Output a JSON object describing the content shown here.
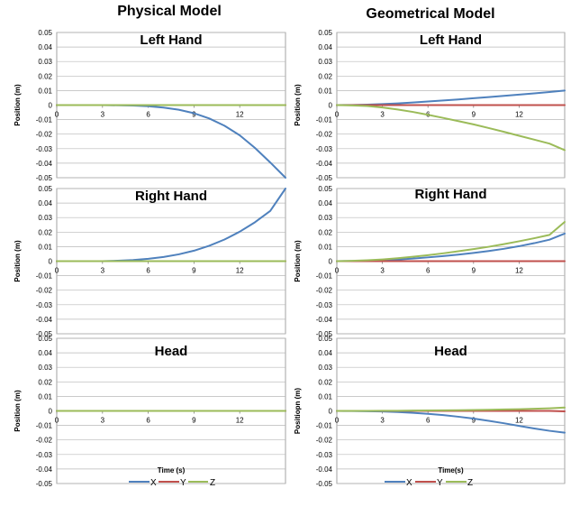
{
  "column_titles": [
    "Physical Model",
    "Geometrical Model"
  ],
  "legend": [
    {
      "name": "X",
      "color": "#4F81BD"
    },
    {
      "name": "Y",
      "color": "#C0504D"
    },
    {
      "name": "Z",
      "color": "#9BBB59"
    }
  ],
  "chart_data": [
    {
      "type": "line",
      "title": "Left Hand",
      "ylabel": "Position (m)",
      "xlabel": "",
      "ylim": [
        -0.05,
        0.05
      ],
      "xlim": [
        0,
        15
      ],
      "xticks": [
        0,
        3,
        6,
        9,
        12
      ],
      "yticks": [
        0.05,
        0.04,
        0.03,
        0.02,
        0.01,
        0,
        -0.01,
        -0.02,
        -0.03,
        -0.04,
        -0.05
      ],
      "ytick_labels": [
        "0.05",
        "0.04",
        "0.03",
        "0.02",
        "0.01",
        "0",
        "-0.01",
        "-0.02",
        "-0.03",
        "-0.04",
        "-0.05"
      ],
      "grid": "horizontal",
      "x": [
        0,
        3,
        5,
        6,
        7,
        8,
        9,
        10,
        11,
        12,
        13,
        14,
        15
      ],
      "series": [
        {
          "name": "X",
          "color": "#4F81BD",
          "values": [
            0,
            0,
            -0.0003,
            -0.0008,
            -0.0017,
            -0.0032,
            -0.0056,
            -0.0092,
            -0.0142,
            -0.0208,
            -0.0295,
            -0.0395,
            -0.05
          ]
        },
        {
          "name": "Y",
          "color": "#C0504D",
          "values": [
            0,
            0,
            0,
            0,
            0,
            0,
            0,
            0,
            0,
            0,
            0,
            0,
            0
          ]
        },
        {
          "name": "Z",
          "color": "#9BBB59",
          "values": [
            0,
            0,
            0,
            0,
            0,
            0,
            0,
            0,
            0,
            0,
            0,
            0,
            0
          ]
        }
      ]
    },
    {
      "type": "line",
      "title": "Left Hand",
      "ylabel": "Position (m)",
      "xlabel": "",
      "ylim": [
        -0.05,
        0.05
      ],
      "xlim": [
        0,
        15
      ],
      "xticks": [
        0,
        3,
        6,
        9,
        12
      ],
      "yticks": [
        0.05,
        0.04,
        0.03,
        0.02,
        0.01,
        0,
        -0.01,
        -0.02,
        -0.03,
        -0.04,
        -0.05
      ],
      "ytick_labels": [
        "0.05",
        "0.04",
        "0.03",
        "0.02",
        "0.01",
        "0",
        "-0.01",
        "-0.02",
        "-0.03",
        "-0.04",
        "-0.05"
      ],
      "grid": "horizontal",
      "x": [
        0,
        1,
        2,
        3,
        4,
        5,
        6,
        7,
        8,
        9,
        10,
        11,
        12,
        13,
        14,
        15
      ],
      "series": [
        {
          "name": "X",
          "color": "#4F81BD",
          "values": [
            0,
            0.0001,
            0.0003,
            0.0007,
            0.0012,
            0.0018,
            0.0025,
            0.0032,
            0.0039,
            0.0047,
            0.0055,
            0.0064,
            0.0072,
            0.0081,
            0.009,
            0.01
          ]
        },
        {
          "name": "Y",
          "color": "#C0504D",
          "values": [
            0,
            0,
            0,
            0,
            0,
            0,
            0,
            0,
            0,
            0,
            0,
            0,
            0,
            0,
            0,
            0
          ]
        },
        {
          "name": "Z",
          "color": "#9BBB59",
          "values": [
            0,
            -0.0002,
            -0.0006,
            -0.0016,
            -0.003,
            -0.0047,
            -0.0067,
            -0.0088,
            -0.011,
            -0.0133,
            -0.0158,
            -0.0184,
            -0.0211,
            -0.0238,
            -0.0265,
            -0.031
          ]
        }
      ]
    },
    {
      "type": "line",
      "title": "Right Hand",
      "ylabel": "Position (m)",
      "xlabel": "",
      "ylim": [
        -0.05,
        0.05
      ],
      "xlim": [
        0,
        15
      ],
      "xticks": [
        0,
        3,
        6,
        9,
        12
      ],
      "yticks": [
        0.05,
        0.04,
        0.03,
        0.02,
        0.01,
        0,
        -0.01,
        -0.02,
        -0.03,
        -0.04,
        -0.05
      ],
      "ytick_labels": [
        "0.05",
        "0.04",
        "0.03",
        "0.02",
        "0.01",
        "0",
        "-0.01",
        "-0.02",
        "-0.03",
        "-0.04",
        "-0.05"
      ],
      "grid": "horizontal",
      "x": [
        0,
        3,
        4,
        5,
        6,
        7,
        8,
        9,
        10,
        11,
        12,
        13,
        14,
        15
      ],
      "series": [
        {
          "name": "X",
          "color": "#4F81BD",
          "values": [
            0,
            0,
            0.0003,
            0.0008,
            0.0016,
            0.0029,
            0.0047,
            0.0072,
            0.0106,
            0.0149,
            0.0203,
            0.0268,
            0.0346,
            0.05
          ]
        },
        {
          "name": "Y",
          "color": "#C0504D",
          "values": [
            0,
            0,
            0,
            0,
            0,
            0,
            0,
            0,
            0,
            0,
            0,
            0,
            0,
            0
          ]
        },
        {
          "name": "Z",
          "color": "#9BBB59",
          "values": [
            0,
            0,
            0,
            0,
            0,
            0,
            0,
            0,
            0,
            0,
            0,
            0,
            0,
            0
          ]
        }
      ]
    },
    {
      "type": "line",
      "title": "Right Hand",
      "ylabel": "Position (m)",
      "xlabel": "",
      "ylim": [
        -0.05,
        0.05
      ],
      "xlim": [
        0,
        15
      ],
      "xticks": [
        0,
        3,
        6,
        9,
        12
      ],
      "yticks": [
        0.05,
        0.04,
        0.03,
        0.02,
        0.01,
        0,
        -0.01,
        -0.02,
        -0.03,
        -0.04,
        -0.05
      ],
      "ytick_labels": [
        "0.05",
        "0.04",
        "0.03",
        "0.02",
        "0.01",
        "0",
        "-0.01",
        "-0.02",
        "-0.03",
        "-0.04",
        "-0.05"
      ],
      "grid": "horizontal",
      "x": [
        0,
        1,
        2,
        3,
        4,
        5,
        6,
        7,
        8,
        9,
        10,
        11,
        12,
        13,
        14,
        15
      ],
      "series": [
        {
          "name": "X",
          "color": "#4F81BD",
          "values": [
            0,
            0.0001,
            0.0003,
            0.0006,
            0.0011,
            0.0018,
            0.0026,
            0.0035,
            0.0045,
            0.0057,
            0.007,
            0.0085,
            0.0103,
            0.0124,
            0.0148,
            0.019
          ]
        },
        {
          "name": "Y",
          "color": "#C0504D",
          "values": [
            0,
            0,
            0,
            0,
            0,
            0,
            0,
            0,
            0,
            0,
            0,
            0,
            0,
            0,
            0,
            0
          ]
        },
        {
          "name": "Z",
          "color": "#9BBB59",
          "values": [
            0,
            0.0002,
            0.0006,
            0.0012,
            0.002,
            0.003,
            0.0041,
            0.0054,
            0.0068,
            0.0083,
            0.0099,
            0.0117,
            0.0137,
            0.0158,
            0.0181,
            0.027
          ]
        }
      ]
    },
    {
      "type": "line",
      "title": "Head",
      "ylabel": "Position (m)",
      "xlabel": "Time (s)",
      "ylim": [
        -0.05,
        0.05
      ],
      "xlim": [
        0,
        15
      ],
      "xticks": [
        0,
        3,
        6,
        9,
        12
      ],
      "yticks": [
        0.05,
        0.04,
        0.03,
        0.02,
        0.01,
        0,
        -0.01,
        -0.02,
        -0.03,
        -0.04,
        -0.05
      ],
      "ytick_labels": [
        "0.05",
        "0.04",
        "0.03",
        "0.02",
        "0.01",
        "0",
        "-0.01",
        "-0.02",
        "-0.03",
        "-0.04",
        "-0.05"
      ],
      "grid": "horizontal",
      "x": [
        0,
        15
      ],
      "series": [
        {
          "name": "X",
          "color": "#4F81BD",
          "values": [
            0,
            0
          ]
        },
        {
          "name": "Y",
          "color": "#C0504D",
          "values": [
            0,
            0
          ]
        },
        {
          "name": "Z",
          "color": "#9BBB59",
          "values": [
            0,
            0
          ]
        }
      ]
    },
    {
      "type": "line",
      "title": "Head",
      "ylabel": "Positiopn (m)",
      "xlabel": "Time(s)",
      "ylim": [
        -0.05,
        0.05
      ],
      "xlim": [
        0,
        15
      ],
      "xticks": [
        0,
        3,
        6,
        9,
        12
      ],
      "yticks": [
        0.05,
        0.04,
        0.03,
        0.02,
        0.01,
        0,
        -0.01,
        -0.02,
        -0.03,
        -0.04,
        -0.05
      ],
      "ytick_labels": [
        "0.05",
        "0.04",
        "0.03",
        "0.02",
        "0.01",
        "0",
        "-0.01",
        "-0.02",
        "-0.03",
        "-0.04",
        "-0.05"
      ],
      "grid": "horizontal",
      "x": [
        0,
        1,
        2,
        3,
        4,
        5,
        6,
        7,
        8,
        9,
        10,
        11,
        12,
        13,
        14,
        15
      ],
      "series": [
        {
          "name": "X",
          "color": "#4F81BD",
          "values": [
            0,
            -0.0001,
            -0.0002,
            -0.0004,
            -0.0008,
            -0.0013,
            -0.002,
            -0.0029,
            -0.004,
            -0.0053,
            -0.0068,
            -0.0085,
            -0.0103,
            -0.0121,
            -0.0137,
            -0.015
          ]
        },
        {
          "name": "Y",
          "color": "#C0504D",
          "values": [
            0,
            0,
            0,
            0,
            0,
            0,
            0,
            0,
            0,
            0,
            0,
            0,
            0,
            0,
            0,
            -0.0003
          ]
        },
        {
          "name": "Z",
          "color": "#9BBB59",
          "values": [
            0,
            0,
            0,
            0.0001,
            0.0001,
            0.0002,
            0.0003,
            0.0004,
            0.0005,
            0.0006,
            0.0008,
            0.001,
            0.0012,
            0.0015,
            0.0018,
            0.0023
          ]
        }
      ]
    }
  ]
}
